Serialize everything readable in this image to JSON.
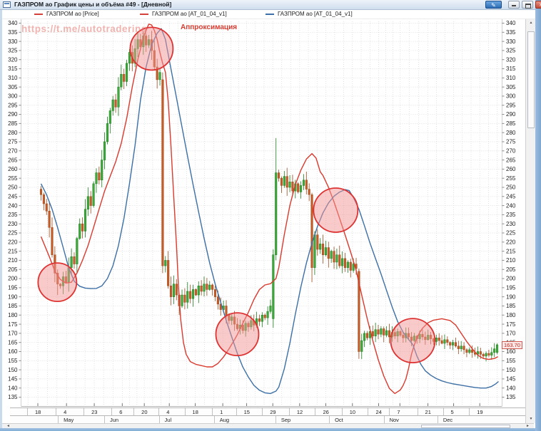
{
  "window": {
    "title": "ГАЗПРОМ ао График цены и объёма #49 - [Дневной]"
  },
  "window_controls": {
    "edit_glyph": "✎",
    "close_glyph": "✕"
  },
  "legend": [
    {
      "label": "ГАЗПРОМ ао [Price]",
      "color": "#d4403a",
      "x": 48
    },
    {
      "label": "ГАЗПРОМ ао [AT_01_04_v1]",
      "color": "#d4403a",
      "x": 196
    },
    {
      "label": "ГАЗПРОМ ао [AT_01_04_v1]",
      "color": "#3c6fa5",
      "x": 372
    }
  ],
  "overlay": {
    "watermark": "https://t.me/autotradering",
    "annotation": "Аппроксимация"
  },
  "price_label": {
    "text": "163.70",
    "value": 163.7
  },
  "y_axis": {
    "min": 135,
    "max": 340,
    "step": 5
  },
  "x_axis": {
    "ticks": [
      {
        "label": "18",
        "f": -0.007
      },
      {
        "label": "4",
        "f": 0.0555
      },
      {
        "label": "23",
        "f": 0.116
      },
      {
        "label": "6",
        "f": 0.177
      },
      {
        "label": "20",
        "f": 0.225
      },
      {
        "label": "4",
        "f": 0.2795
      },
      {
        "label": "18",
        "f": 0.336
      },
      {
        "label": "1",
        "f": 0.396
      },
      {
        "label": "15",
        "f": 0.448
      },
      {
        "label": "29",
        "f": 0.505
      },
      {
        "label": "12",
        "f": 0.5635
      },
      {
        "label": "26",
        "f": 0.6205
      },
      {
        "label": "10",
        "f": 0.6785
      },
      {
        "label": "24",
        "f": 0.7356
      },
      {
        "label": "7",
        "f": 0.782
      },
      {
        "label": "21",
        "f": 0.843
      },
      {
        "label": "5",
        "f": 0.899
      },
      {
        "label": "19",
        "f": 0.956
      }
    ],
    "months": [
      {
        "label": "May",
        "f": 0.046
      },
      {
        "label": "Jun",
        "f": 0.147
      },
      {
        "label": "Jul",
        "f": 0.266
      },
      {
        "label": "Aug",
        "f": 0.386
      },
      {
        "label": "Sep",
        "f": 0.52
      },
      {
        "label": "Oct",
        "f": 0.637
      },
      {
        "label": "Nov",
        "f": 0.756
      },
      {
        "label": "Dec",
        "f": 0.873
      }
    ]
  },
  "scrollbars": {
    "left": "◄",
    "right": "►",
    "up": "▲",
    "down": "▼"
  },
  "chart_data": {
    "type": "candlestick",
    "symbol": "ГАЗПРОМ ао",
    "timeframe": "Дневной",
    "ylim": [
      135,
      340
    ],
    "first_open": 249,
    "closes": [
      246,
      241,
      237,
      228,
      213,
      203,
      197,
      196,
      201,
      198,
      206,
      212,
      208,
      222,
      230,
      226,
      238,
      245,
      240,
      252,
      258,
      254,
      265,
      275,
      285,
      292,
      298,
      294,
      305,
      312,
      308,
      318,
      324,
      318,
      326,
      331,
      327,
      333,
      328,
      331,
      325,
      316,
      309,
      313,
      207,
      210,
      196,
      190,
      197,
      191,
      185,
      191,
      187,
      193,
      189,
      194,
      191,
      196,
      193,
      197,
      194,
      196.5,
      194,
      190,
      186,
      183,
      185,
      180,
      177,
      179,
      175,
      172.5,
      174.5,
      171.5,
      175.5,
      173.5,
      177,
      174.5,
      178,
      176.5,
      180,
      178.5,
      182,
      185,
      213,
      258,
      255,
      251,
      256,
      250,
      253,
      248,
      252,
      247.5,
      251,
      254,
      249,
      246,
      206,
      224,
      216,
      219,
      213,
      217,
      211,
      215,
      209,
      213,
      207,
      211,
      206,
      209,
      204.5,
      208,
      205.5,
      160,
      166,
      170,
      167.5,
      171,
      168.5,
      172,
      169.5,
      172.5,
      169,
      171.5,
      168,
      170.5,
      168.5,
      171,
      169,
      167.5,
      170,
      168,
      166,
      168.5,
      167,
      169.5,
      168,
      166.5,
      169,
      167,
      165.5,
      167.5,
      166,
      164.5,
      166.5,
      165,
      163.5,
      165,
      163,
      161.5,
      163,
      161,
      159.5,
      161,
      159.5,
      158.5,
      160,
      158.5,
      157.5,
      159,
      158,
      159.5,
      161.5,
      163.7
    ],
    "special_candles": {
      "6": [
        203,
        205,
        191,
        197
      ],
      "44": [
        309,
        313,
        203,
        207
      ],
      "84": [
        178,
        216,
        173,
        213
      ],
      "85": [
        213,
        277,
        210,
        258
      ],
      "98": [
        246,
        247,
        198,
        206
      ],
      "99": [
        206,
        226,
        202,
        224
      ],
      "115": [
        204,
        205.5,
        156,
        160
      ],
      "165": [
        159.5,
        164.5,
        158.5,
        163.7
      ]
    },
    "series": [
      {
        "name": "ГАЗПРОМ ао [AT_01_04_v1]",
        "color": "#d93a2e",
        "points": [
          [
            0,
            223
          ],
          [
            3,
            212
          ],
          [
            5,
            204
          ],
          [
            7,
            199.5
          ],
          [
            9,
            197.5
          ],
          [
            11,
            198
          ],
          [
            13,
            203
          ],
          [
            15,
            210
          ],
          [
            17,
            218
          ],
          [
            19,
            228
          ],
          [
            21,
            238
          ],
          [
            23,
            248
          ],
          [
            25,
            256
          ],
          [
            27,
            264
          ],
          [
            29,
            274
          ],
          [
            31,
            288
          ],
          [
            33,
            305
          ],
          [
            35,
            320
          ],
          [
            37,
            332
          ],
          [
            38,
            336
          ],
          [
            39,
            339.5
          ],
          [
            40,
            339
          ],
          [
            41,
            336
          ],
          [
            42,
            331
          ],
          [
            43,
            324
          ],
          [
            44,
            318
          ],
          [
            45,
            313
          ],
          [
            46,
            297
          ],
          [
            47,
            273
          ],
          [
            48,
            245
          ],
          [
            49,
            218
          ],
          [
            49.7,
            196
          ],
          [
            50.5,
            178
          ],
          [
            51.5,
            165
          ],
          [
            52.5,
            158.5
          ],
          [
            54,
            154.5
          ],
          [
            56,
            153
          ],
          [
            58,
            152.3
          ],
          [
            60,
            151.6
          ],
          [
            62,
            151.6
          ],
          [
            64,
            153.5
          ],
          [
            66,
            157
          ],
          [
            68,
            161.5
          ],
          [
            70,
            166.5
          ],
          [
            71,
            169.3
          ],
          [
            73,
            175.5
          ],
          [
            75,
            181.5
          ],
          [
            77,
            188.5
          ],
          [
            79,
            194
          ],
          [
            81,
            196.5
          ],
          [
            83,
            197.2
          ],
          [
            85,
            200
          ],
          [
            86,
            206
          ],
          [
            88,
            224
          ],
          [
            90,
            240
          ],
          [
            92,
            251.5
          ],
          [
            94,
            259.5
          ],
          [
            96,
            265.5
          ],
          [
            98,
            268.5
          ],
          [
            99.5,
            266
          ],
          [
            101,
            258.5
          ],
          [
            102,
            256.5
          ],
          [
            104,
            250
          ],
          [
            106,
            242
          ],
          [
            108,
            233
          ],
          [
            110,
            224
          ],
          [
            112,
            214.5
          ],
          [
            114,
            204.5
          ],
          [
            116,
            191
          ],
          [
            118,
            178
          ],
          [
            120,
            166
          ],
          [
            122,
            155.5
          ],
          [
            124,
            146.5
          ],
          [
            126,
            139.8
          ],
          [
            128,
            137
          ],
          [
            130,
            139
          ],
          [
            131,
            141.5
          ],
          [
            132,
            145
          ],
          [
            133,
            151
          ],
          [
            134,
            158.5
          ],
          [
            135,
            163.5
          ],
          [
            136,
            167.5
          ],
          [
            137,
            170.5
          ],
          [
            138,
            172.8
          ],
          [
            140,
            175.8
          ],
          [
            142,
            177.2
          ],
          [
            145,
            178
          ],
          [
            148,
            177
          ],
          [
            150,
            174.5
          ],
          [
            152,
            170
          ],
          [
            154,
            165.5
          ],
          [
            156,
            161.5
          ],
          [
            158,
            158
          ],
          [
            160,
            156.2
          ],
          [
            162,
            155.7
          ],
          [
            164,
            156.2
          ],
          [
            165.3,
            157.2
          ]
        ]
      },
      {
        "name": "ГАЗПРОМ ао [AT_01_04_v1]",
        "color": "#3c6fa5",
        "points": [
          [
            0,
            252
          ],
          [
            2,
            246
          ],
          [
            4,
            238
          ],
          [
            6,
            228
          ],
          [
            8,
            217
          ],
          [
            10,
            206
          ],
          [
            12,
            198.5
          ],
          [
            14,
            195.8
          ],
          [
            16,
            194.8
          ],
          [
            18,
            194.5
          ],
          [
            20,
            194.6
          ],
          [
            22,
            196
          ],
          [
            24,
            200
          ],
          [
            26,
            207
          ],
          [
            28,
            218
          ],
          [
            30,
            233
          ],
          [
            32,
            252
          ],
          [
            34,
            273
          ],
          [
            36,
            298
          ],
          [
            38,
            316
          ],
          [
            40,
            328
          ],
          [
            42,
            334.5
          ],
          [
            43.5,
            337
          ],
          [
            45,
            331
          ],
          [
            47,
            315
          ],
          [
            49,
            299
          ],
          [
            51,
            283
          ],
          [
            53,
            267
          ],
          [
            55,
            251.5
          ],
          [
            57,
            236.5
          ],
          [
            59,
            222
          ],
          [
            61,
            208.5
          ],
          [
            63,
            197
          ],
          [
            65,
            187
          ],
          [
            67,
            177
          ],
          [
            69,
            168
          ],
          [
            71,
            159
          ],
          [
            73,
            151.5
          ],
          [
            75,
            146
          ],
          [
            77,
            141.5
          ],
          [
            79,
            138.8
          ],
          [
            81,
            137.4
          ],
          [
            83,
            137
          ],
          [
            85,
            138.3
          ],
          [
            86,
            140.5
          ],
          [
            88,
            150.5
          ],
          [
            90,
            164.5
          ],
          [
            92,
            180.5
          ],
          [
            94,
            195.5
          ],
          [
            96,
            208.5
          ],
          [
            98,
            219.5
          ],
          [
            100,
            228.5
          ],
          [
            102,
            236
          ],
          [
            104,
            241.5
          ],
          [
            106,
            245.2
          ],
          [
            108,
            247.4
          ],
          [
            110,
            248.8
          ],
          [
            111.5,
            248.2
          ],
          [
            113,
            244.5
          ],
          [
            115,
            238
          ],
          [
            117,
            229
          ],
          [
            119,
            219.5
          ],
          [
            121,
            211
          ],
          [
            123,
            202.5
          ],
          [
            125,
            193.5
          ],
          [
            127,
            184.5
          ],
          [
            129,
            176.5
          ],
          [
            131,
            170.5
          ],
          [
            133,
            166.6
          ],
          [
            134.5,
            163.8
          ],
          [
            136,
            157.5
          ],
          [
            137.5,
            152.8
          ],
          [
            139,
            149.5
          ],
          [
            141,
            147
          ],
          [
            143,
            145.2
          ],
          [
            145,
            143.9
          ],
          [
            147,
            143
          ],
          [
            149,
            142.3
          ],
          [
            151,
            141.8
          ],
          [
            154,
            141
          ],
          [
            157,
            140.3
          ],
          [
            159,
            140
          ],
          [
            161,
            140
          ],
          [
            163,
            140.9
          ],
          [
            164.5,
            142.3
          ],
          [
            165.5,
            143.6
          ]
        ]
      }
    ],
    "highlight_circles": [
      {
        "x": 5.9,
        "y": 198,
        "r": 27
      },
      {
        "x": 40,
        "y": 326,
        "r": 30
      },
      {
        "x": 71,
        "y": 169.5,
        "r": 30
      },
      {
        "x": 106.6,
        "y": 237.5,
        "r": 31
      },
      {
        "x": 134.5,
        "y": 166,
        "r": 31
      }
    ],
    "colors": {
      "up": "#3fa93c",
      "up_stroke": "#1e7d1e",
      "down": "#c75b26",
      "down_stroke": "#9a4a1c",
      "grid": "#d6d6d6",
      "circle_fill": "rgba(244,150,150,0.5)",
      "circle_stroke": "#dd3333"
    }
  }
}
